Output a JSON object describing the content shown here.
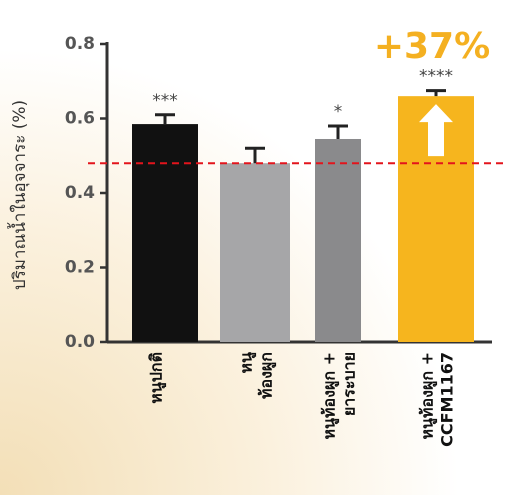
{
  "chart_data": {
    "type": "bar",
    "y_label": "ปริมาณน้ำในอุจจาระ (%)",
    "annotation": "+37%",
    "categories": [
      [
        "หนูปกติ"
      ],
      [
        "หนู",
        "ท้องผูก"
      ],
      [
        "หนูท้องผูก +",
        "ยาระบาย"
      ],
      [
        "หนูท้องผูก +",
        "CCFM1167"
      ]
    ],
    "values": [
      0.585,
      0.48,
      0.545,
      0.66
    ],
    "errors": [
      0.025,
      0.04,
      0.035,
      0.015
    ],
    "significance": [
      "***",
      null,
      "*",
      "****"
    ],
    "colors": [
      "#111111",
      "#a6a6a8",
      "#8a8a8c",
      "#f6b51e"
    ],
    "reference_line": {
      "value": 0.48,
      "color": "#e3141c"
    },
    "ylim": [
      0,
      0.8
    ],
    "yticks": [
      {
        "value": 0,
        "label": "0.0"
      },
      0.2,
      0.4,
      0.6,
      0.8
    ]
  }
}
